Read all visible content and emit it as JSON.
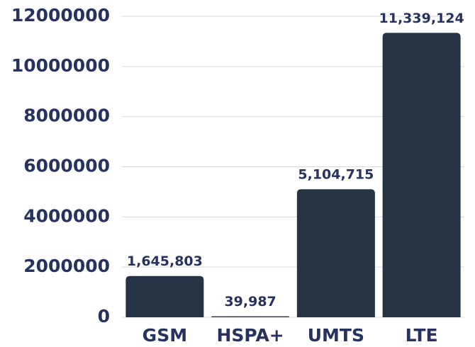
{
  "chart_data": {
    "type": "bar",
    "categories": [
      "GSM",
      "HSPA+",
      "UMTS",
      "LTE"
    ],
    "values": [
      1645803,
      39987,
      5104715,
      11339124
    ],
    "value_labels": [
      "1,645,803",
      "39,987",
      "5,104,715",
      "11,339,124"
    ],
    "color": "#253345",
    "ylim": [
      0,
      12000000
    ],
    "yticks": [
      0,
      2000000,
      4000000,
      6000000,
      8000000,
      10000000,
      12000000
    ],
    "grid": true
  }
}
